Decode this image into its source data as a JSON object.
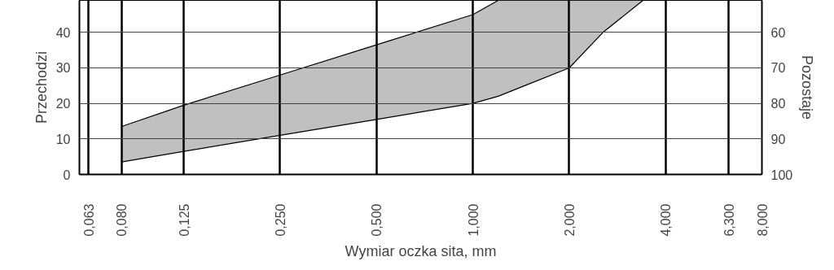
{
  "chart_data": {
    "type": "area",
    "xlabel": "Wymiar oczka sita, mm",
    "ylabel": "Przechodzi",
    "y2label": "Pozostaje",
    "log": "x",
    "xlim": [
      0.059,
      8
    ],
    "xticks": [
      {
        "value": 0.063,
        "label": "0,063"
      },
      {
        "value": 0.08,
        "label": "0,080"
      },
      {
        "value": 0.125,
        "label": "0,125"
      },
      {
        "value": 0.25,
        "label": "0,250"
      },
      {
        "value": 0.5,
        "label": "0,500"
      },
      {
        "value": 1,
        "label": "1,000"
      },
      {
        "value": 2,
        "label": "2,000"
      },
      {
        "value": 4,
        "label": "4,000"
      },
      {
        "value": 6.3,
        "label": "6,300"
      },
      {
        "value": 8,
        "label": "8,000"
      }
    ],
    "ylim": [
      0,
      49
    ],
    "stacked": true,
    "yticks": [
      0,
      10,
      20,
      30,
      40
    ],
    "y2lim": [
      100,
      51
    ],
    "y2ticks": [
      100,
      90,
      80,
      70,
      60
    ],
    "grid": true,
    "series": [
      {
        "color": "#ffffff",
        "x": [
          0.08,
          0.125,
          0.25,
          0.5,
          1,
          1.2,
          1.5,
          2,
          2.55,
          3.4
        ],
        "values": [
          3.5,
          6.5,
          11,
          15.5,
          20,
          22,
          25.5,
          30,
          40,
          49
        ]
      },
      {
        "color": "#c0c0c0",
        "x": [
          0.08,
          0.125,
          0.25,
          0.5,
          1,
          1.2,
          1.5,
          2,
          2.55,
          3.4
        ],
        "values": [
          10,
          13,
          17,
          21,
          25,
          27,
          23.5,
          19,
          9,
          0
        ]
      }
    ]
  }
}
